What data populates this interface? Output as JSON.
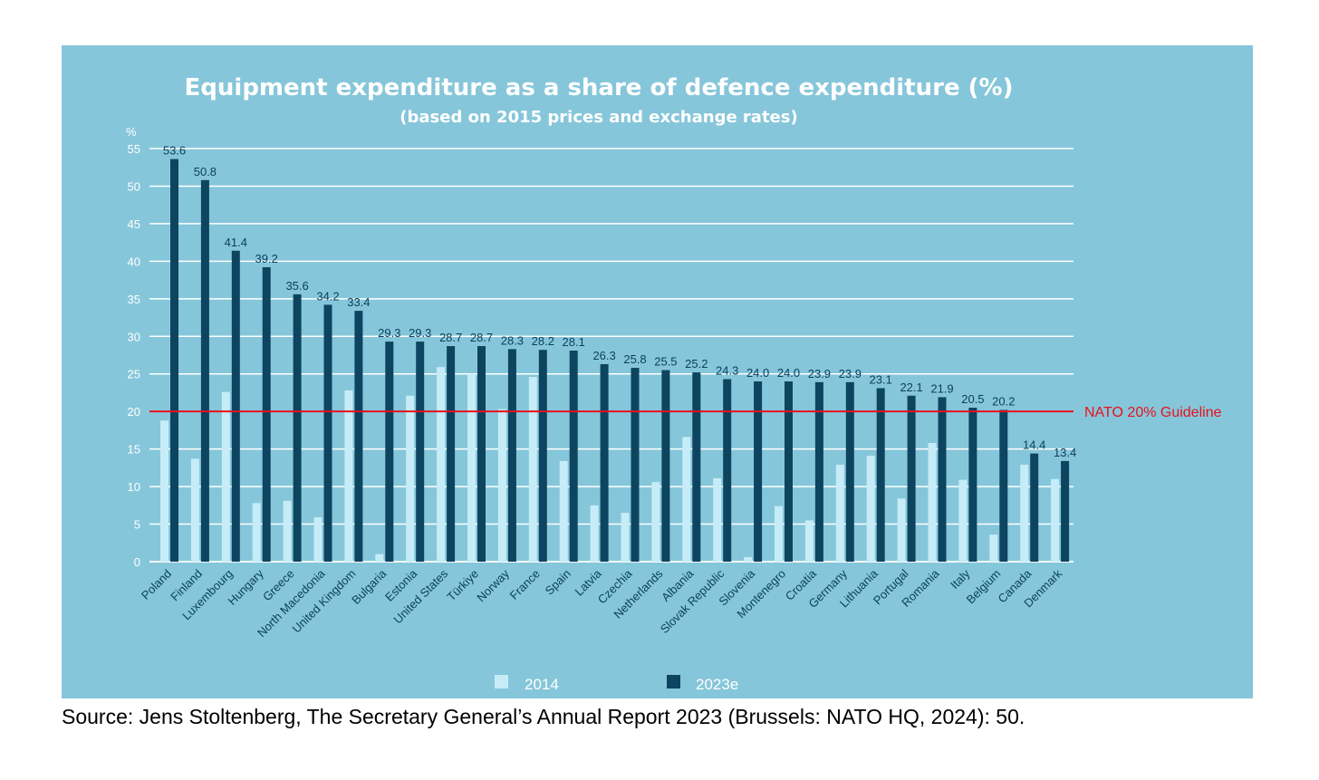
{
  "chart_data": {
    "type": "bar",
    "title": "Equipment expenditure as a share of defence expenditure (%)",
    "subtitle": "(based on 2015 prices and exchange rates)",
    "ylabel": "%",
    "ylim": [
      0,
      55
    ],
    "yticks": [
      0,
      5,
      10,
      15,
      20,
      25,
      30,
      35,
      40,
      45,
      50,
      55
    ],
    "grid": true,
    "legend_position": "bottom",
    "categories": [
      "Poland",
      "Finland",
      "Luxembourg",
      "Hungary",
      "Greece",
      "North Macedonia",
      "United Kingdom",
      "Bulgaria",
      "Estonia",
      "United States",
      "Türkiye",
      "Norway",
      "France",
      "Spain",
      "Latvia",
      "Czechia",
      "Netherlands",
      "Albania",
      "Slovak Republic",
      "Slovenia",
      "Montenegro",
      "Croatia",
      "Germany",
      "Lithuania",
      "Portugal",
      "Romania",
      "Italy",
      "Belgium",
      "Canada",
      "Denmark"
    ],
    "series": [
      {
        "name": "2014",
        "color": "#c6ecf8",
        "values": [
          18.8,
          13.7,
          22.6,
          7.8,
          8.1,
          5.9,
          22.8,
          1.0,
          22.1,
          25.9,
          25.0,
          20.3,
          24.6,
          13.4,
          7.5,
          6.5,
          10.6,
          16.6,
          11.1,
          0.6,
          7.4,
          5.5,
          12.9,
          14.1,
          8.4,
          15.8,
          10.9,
          3.6,
          12.9,
          11.0
        ]
      },
      {
        "name": "2023e",
        "color": "#0d4460",
        "values": [
          53.6,
          50.8,
          41.4,
          39.2,
          35.6,
          34.2,
          33.4,
          29.3,
          29.3,
          28.7,
          28.7,
          28.3,
          28.2,
          28.1,
          26.3,
          25.8,
          25.5,
          25.2,
          24.3,
          24.0,
          24.0,
          23.9,
          23.9,
          23.1,
          22.1,
          21.9,
          20.5,
          20.2,
          14.4,
          13.4
        ]
      }
    ],
    "data_labels": [
      "53.6",
      "50.8",
      "41.4",
      "39.2",
      "35.6",
      "34.2",
      "33.4",
      "29.3",
      "29.3",
      "28.7",
      "28.7",
      "28.3",
      "28.2",
      "28.1",
      "26.3",
      "25.8",
      "25.5",
      "25.2",
      "24.3",
      "24.0",
      "24.0",
      "23.9",
      "23.9",
      "23.1",
      "22.1",
      "21.9",
      "20.5",
      "20.2",
      "14.4",
      "13.4"
    ],
    "guideline": {
      "value": 20,
      "label": "NATO 20% Guideline",
      "color": "#e8101c"
    },
    "background_color": "#86c6da",
    "grid_color": "#ffffff"
  },
  "source": "Source: Jens Stoltenberg, The Secretary General’s Annual Report 2023 (Brussels: NATO HQ, 2024): 50."
}
